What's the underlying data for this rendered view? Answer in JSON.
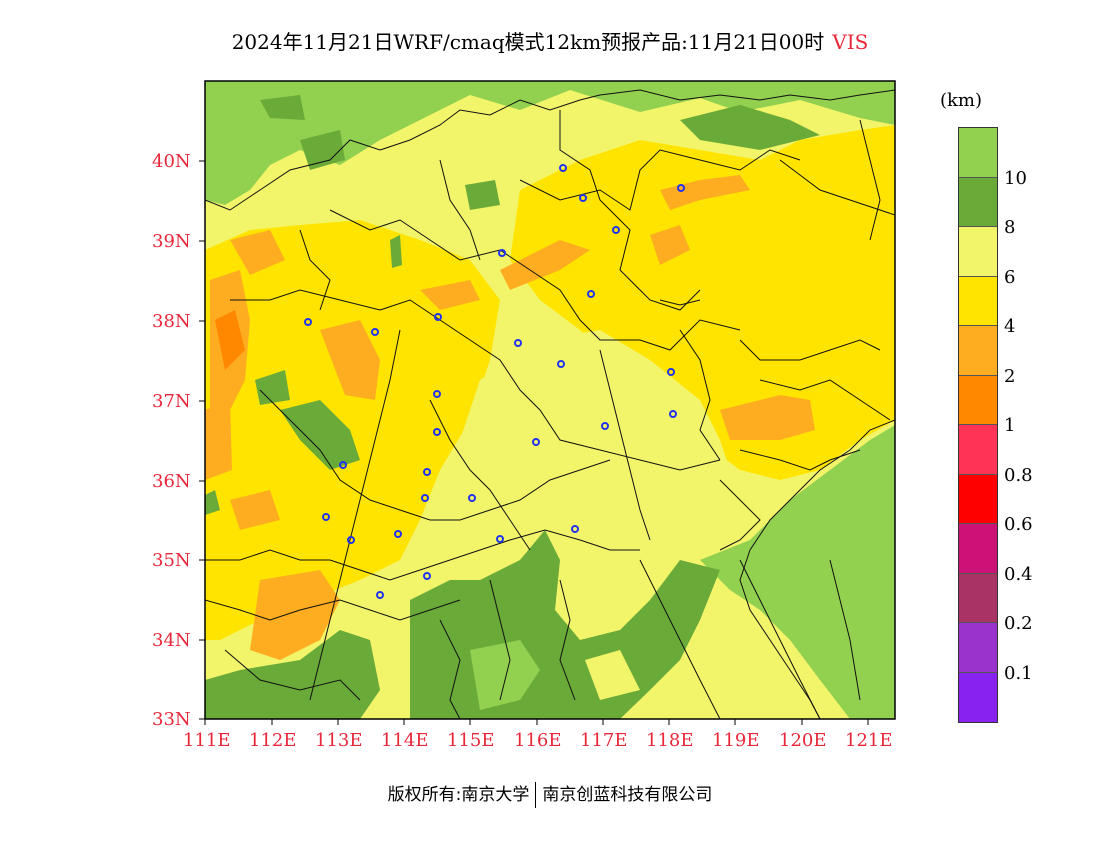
{
  "title": {
    "main": "2024年11月21日WRF/cmaq模式12km预报产品:11月21日00时",
    "variable": "VIS"
  },
  "colorbar": {
    "unit": "(km)",
    "levels": [
      "10",
      "8",
      "6",
      "4",
      "2",
      "1",
      "0.8",
      "0.6",
      "0.4",
      "0.2",
      "0.1"
    ],
    "colors": [
      "#92d050",
      "#6aaa38",
      "#f2f56a",
      "#ffe400",
      "#ffad20",
      "#ff8800",
      "#ff3355",
      "#ff0000",
      "#cc1177",
      "#aa3366",
      "#9933cc",
      "#8822ee"
    ]
  },
  "axes": {
    "lat_labels": [
      "40N",
      "39N",
      "38N",
      "37N",
      "36N",
      "35N",
      "34N",
      "33N"
    ],
    "lon_labels": [
      "111E",
      "112E",
      "113E",
      "114E",
      "115E",
      "116E",
      "117E",
      "118E",
      "119E",
      "120E",
      "121E"
    ]
  },
  "colors": {
    "tick_label": "#e8273a",
    "city_marker": "#2233ee"
  },
  "footer": {
    "left": "版权所有:南京大学",
    "right": "南京创蓝科技有限公司"
  }
}
